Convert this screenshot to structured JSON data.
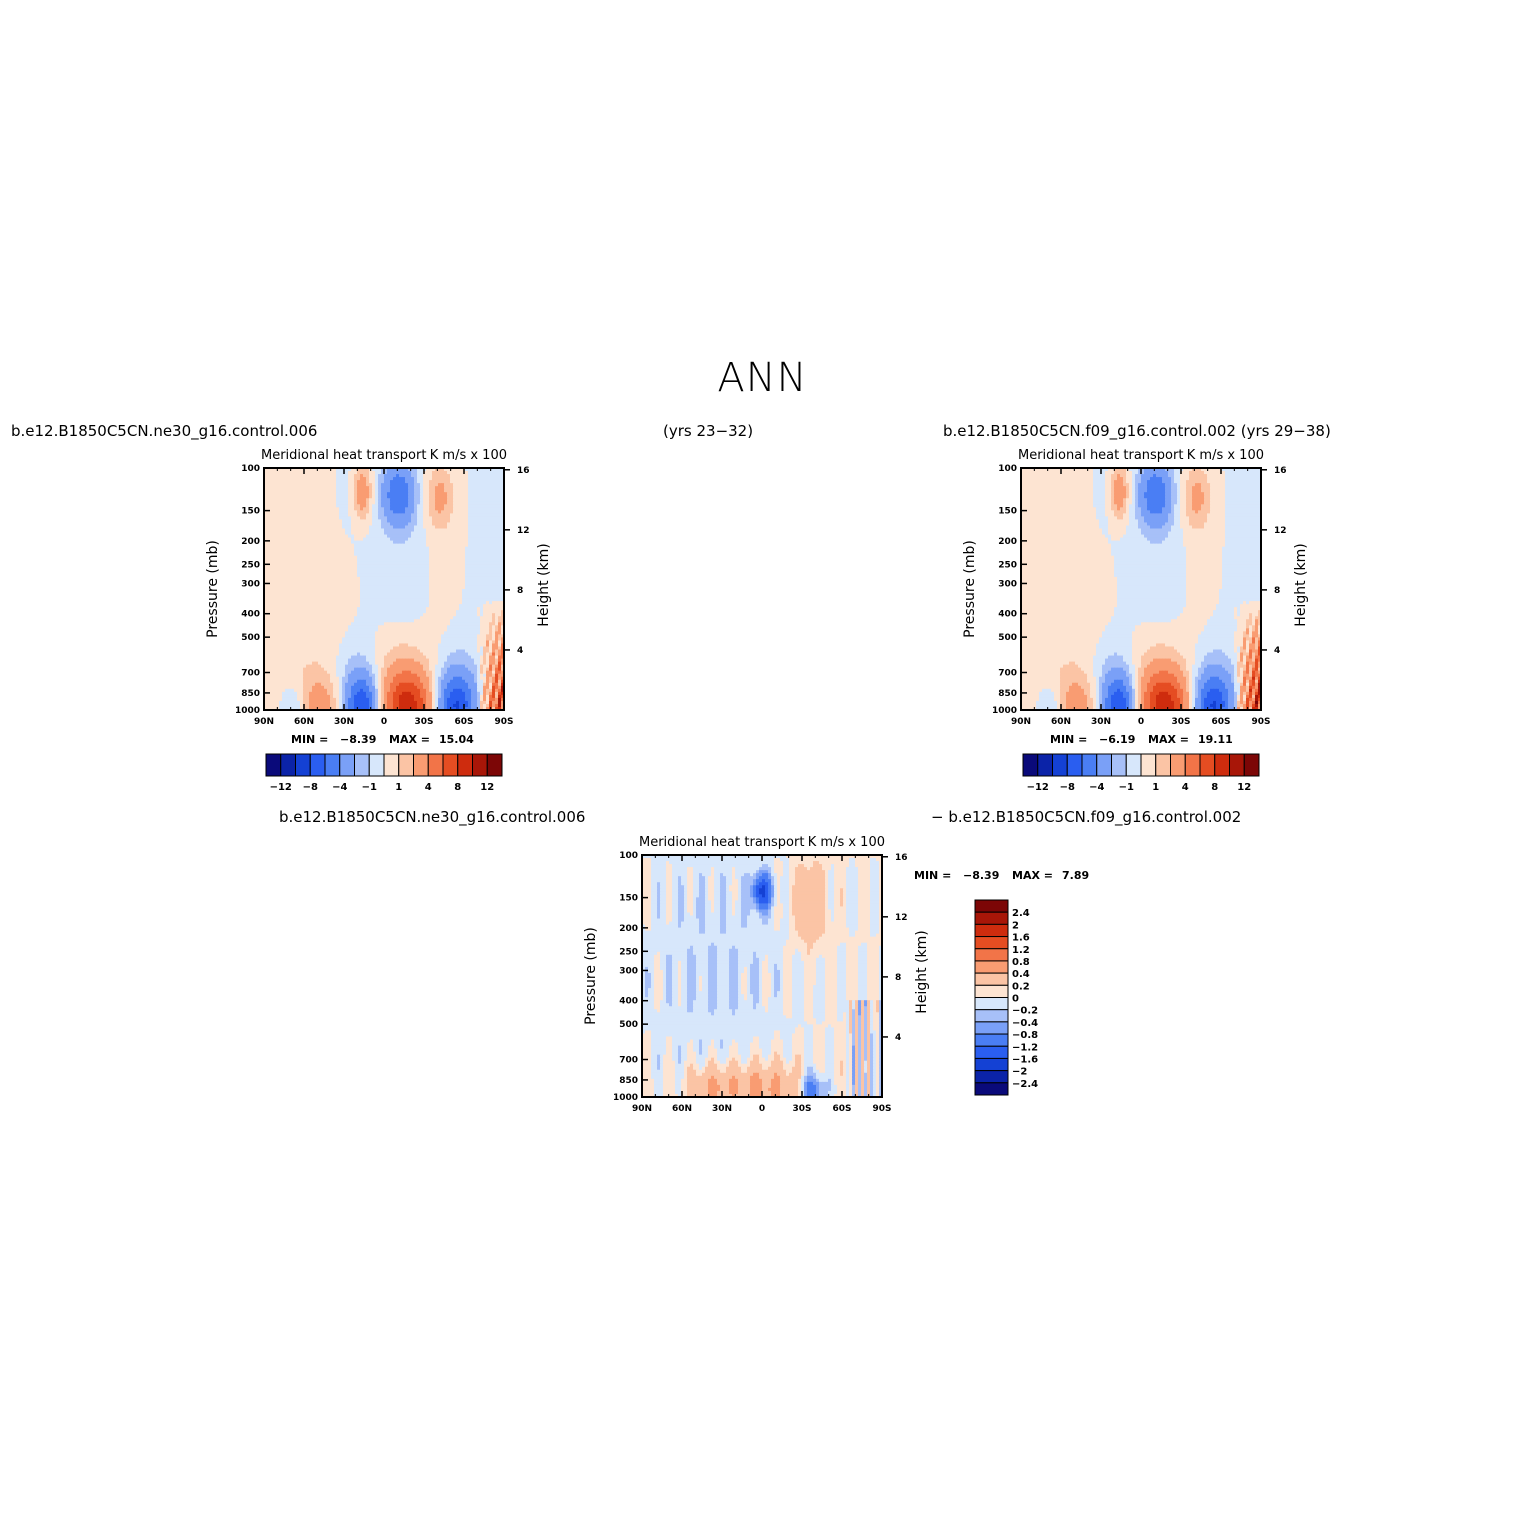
{
  "figure": {
    "title": "ANN",
    "left_case_label": "b.e12.B1850C5CN.ne30_g16.control.006",
    "left_years": "(yrs 23−32)",
    "right_case_label": "b.e12.B1850C5CN.f09_g16.control.002 (yrs 29−38)",
    "diff_case_a": "b.e12.B1850C5CN.ne30_g16.control.006",
    "diff_case_b": "− b.e12.B1850C5CN.f09_g16.control.002"
  },
  "chart_data": [
    {
      "type": "heatmap",
      "panel": "ne30 control",
      "title": "Meridional heat transport",
      "units": "K m/s x 100",
      "xlabel": "",
      "ylabel": "Pressure (mb)",
      "ylabel_right": "Height (km)",
      "x_ticks": [
        "90N",
        "60N",
        "30N",
        "0",
        "30S",
        "60S",
        "90S"
      ],
      "y_ticks": [
        100,
        150,
        200,
        250,
        300,
        400,
        500,
        700,
        850,
        1000
      ],
      "y_scale": "log",
      "height_ticks": [
        16,
        12,
        8,
        4
      ],
      "min_label": "MIN =",
      "min_value": "−8.39",
      "max_label": "MAX =",
      "max_value": "15.04",
      "contour_levels": [
        -14,
        -12,
        -10,
        -8,
        -6,
        -4,
        -2,
        -1,
        0,
        1,
        2,
        4,
        6,
        8,
        10,
        12,
        14
      ],
      "colorbar_tick_labels": [
        "−12",
        "−8",
        "−4",
        "−1",
        "1",
        "4",
        "8",
        "12"
      ],
      "colors": [
        "#0a0a7a",
        "#0b23a8",
        "#1441d4",
        "#2a5ef0",
        "#4a7ef4",
        "#7aa0f7",
        "#a7c0f8",
        "#d7e7fb",
        "#fde4d2",
        "#fbc4a5",
        "#f99c72",
        "#f27448",
        "#e54d22",
        "#ce2c0e",
        "#a81608",
        "#7c0606"
      ]
    },
    {
      "type": "heatmap",
      "panel": "f09 control",
      "title": "Meridional heat transport",
      "units": "K m/s x 100",
      "xlabel": "",
      "ylabel": "Pressure (mb)",
      "ylabel_right": "Height (km)",
      "x_ticks": [
        "90N",
        "60N",
        "30N",
        "0",
        "30S",
        "60S",
        "90S"
      ],
      "y_ticks": [
        100,
        150,
        200,
        250,
        300,
        400,
        500,
        700,
        850,
        1000
      ],
      "y_scale": "log",
      "height_ticks": [
        16,
        12,
        8,
        4
      ],
      "min_label": "MIN =",
      "min_value": "−6.19",
      "max_label": "MAX =",
      "max_value": "19.11",
      "contour_levels": [
        -14,
        -12,
        -10,
        -8,
        -6,
        -4,
        -2,
        -1,
        0,
        1,
        2,
        4,
        6,
        8,
        10,
        12,
        14
      ],
      "colorbar_tick_labels": [
        "−12",
        "−8",
        "−4",
        "−1",
        "1",
        "4",
        "8",
        "12"
      ],
      "colors": [
        "#0a0a7a",
        "#0b23a8",
        "#1441d4",
        "#2a5ef0",
        "#4a7ef4",
        "#7aa0f7",
        "#a7c0f8",
        "#d7e7fb",
        "#fde4d2",
        "#fbc4a5",
        "#f99c72",
        "#f27448",
        "#e54d22",
        "#ce2c0e",
        "#a81608",
        "#7c0606"
      ]
    },
    {
      "type": "heatmap",
      "panel": "difference",
      "title": "Meridional heat transport",
      "units": "K m/s x 100",
      "xlabel": "",
      "ylabel": "Pressure (mb)",
      "ylabel_right": "Height (km)",
      "x_ticks": [
        "90N",
        "60N",
        "30N",
        "0",
        "30S",
        "60S",
        "90S"
      ],
      "y_ticks": [
        100,
        150,
        200,
        250,
        300,
        400,
        500,
        700,
        850,
        1000
      ],
      "y_scale": "log",
      "height_ticks": [
        16,
        12,
        8,
        4
      ],
      "min_label": "MIN =",
      "min_value": "−8.39",
      "max_label": "MAX =",
      "max_value": "7.89",
      "contour_levels": [
        -2.4,
        -2,
        -1.6,
        -1.2,
        -0.8,
        -0.4,
        -0.2,
        0,
        0.2,
        0.4,
        0.8,
        1.2,
        1.6,
        2,
        2.4
      ],
      "colorbar_tick_labels": [
        "2.4",
        "2",
        "1.6",
        "1.2",
        "0.8",
        "0.4",
        "0.2",
        "0",
        "−0.2",
        "−0.4",
        "−0.8",
        "−1.2",
        "−1.6",
        "−2",
        "−2.4"
      ],
      "colors": [
        "#0a0a7a",
        "#0b23a8",
        "#1441d4",
        "#2a5ef0",
        "#4a7ef4",
        "#7aa0f7",
        "#a7c0f8",
        "#d7e7fb",
        "#fde4d2",
        "#fbc4a5",
        "#f99c72",
        "#f27448",
        "#e54d22",
        "#ce2c0e",
        "#a81608",
        "#7c0606"
      ]
    }
  ]
}
